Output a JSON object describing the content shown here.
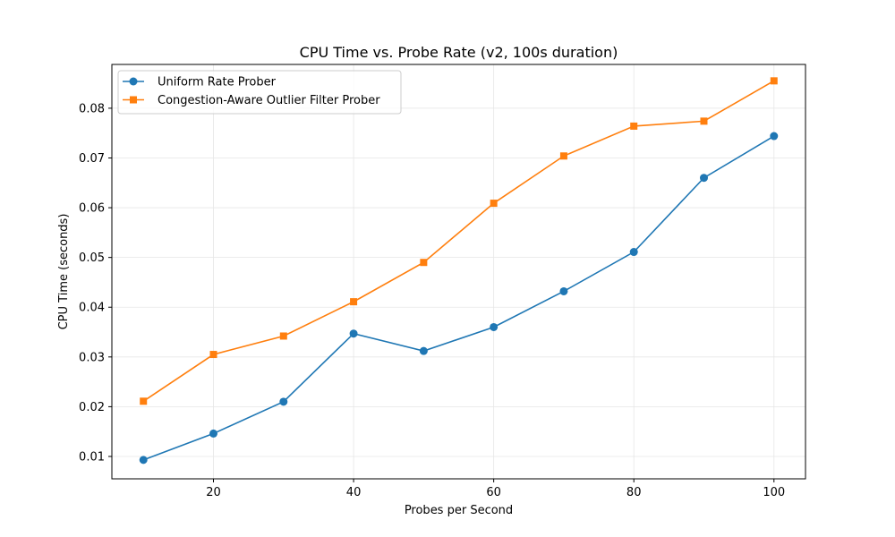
{
  "chart_data": {
    "type": "line",
    "title": "CPU Time vs. Probe Rate (v2, 100s duration)",
    "xlabel": "Probes per Second",
    "ylabel": "CPU Time (seconds)",
    "x": [
      10,
      20,
      30,
      40,
      50,
      60,
      70,
      80,
      90,
      100
    ],
    "xlim": [
      5.5,
      104.5
    ],
    "ylim": [
      0.0055,
      0.0888
    ],
    "xticks": [
      20,
      40,
      60,
      80,
      100
    ],
    "xtick_labels": [
      "20",
      "40",
      "60",
      "80",
      "100"
    ],
    "yticks": [
      0.01,
      0.02,
      0.03,
      0.04,
      0.05,
      0.06,
      0.07,
      0.08
    ],
    "ytick_labels": [
      "0.01",
      "0.02",
      "0.03",
      "0.04",
      "0.05",
      "0.06",
      "0.07",
      "0.08"
    ],
    "grid": true,
    "legend_position": "top-left",
    "series": [
      {
        "name": "Uniform Rate Prober",
        "marker": "circle",
        "color": "#1f77b4",
        "values": [
          0.0093,
          0.0146,
          0.021,
          0.0347,
          0.0312,
          0.036,
          0.0432,
          0.0511,
          0.066,
          0.0744
        ]
      },
      {
        "name": "Congestion-Aware Outlier Filter Prober",
        "marker": "square",
        "color": "#ff7f0e",
        "values": [
          0.0211,
          0.0305,
          0.0342,
          0.0411,
          0.049,
          0.0609,
          0.0704,
          0.0764,
          0.0774,
          0.0855
        ]
      }
    ]
  }
}
